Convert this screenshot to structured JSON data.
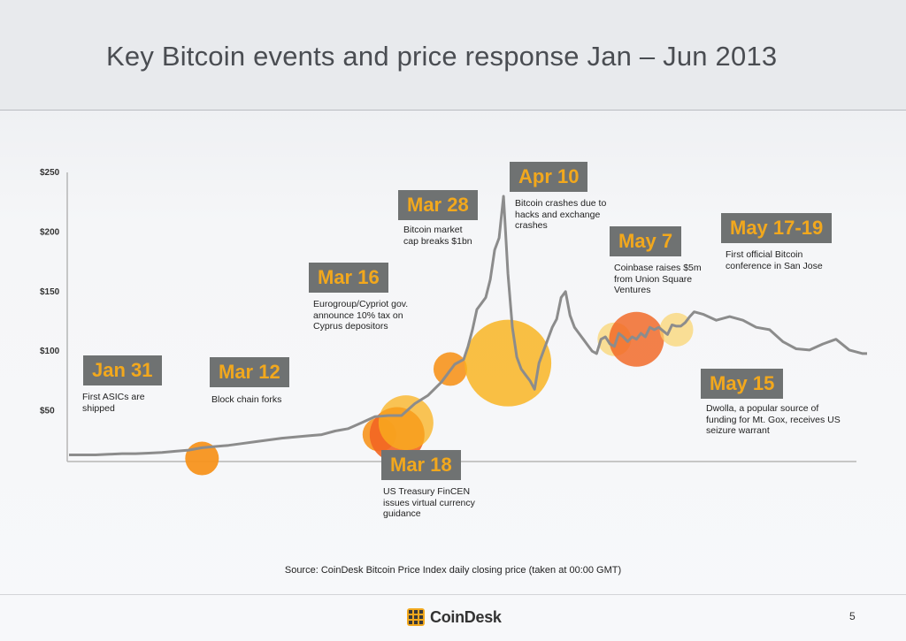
{
  "slide": {
    "title": "Key Bitcoin events and price response Jan – Jun 2013",
    "source": "Source: CoinDesk Bitcoin Price Index daily closing price (taken at 00:00 GMT)",
    "logo_text": "CoinDesk",
    "page_number": "5",
    "colors": {
      "event_box_bg": "#6f7272",
      "event_box_text": "#f2a81d",
      "line": "#8c8c8c"
    }
  },
  "chart_data": {
    "type": "line",
    "title": "",
    "xlabel": "",
    "ylabel": "",
    "ylim": [
      0,
      250
    ],
    "yticks": [
      50,
      100,
      150,
      200,
      250
    ],
    "ytick_labels": [
      "$50",
      "$100",
      "$150",
      "$200",
      "$250"
    ],
    "grid": false,
    "series": [
      {
        "x": [
          "2013-01-01",
          "2013-01-04",
          "2013-01-07",
          "2013-01-10",
          "2013-01-13",
          "2013-01-16",
          "2013-01-19",
          "2013-01-22",
          "2013-01-25",
          "2013-01-28",
          "2013-01-31",
          "2013-02-03",
          "2013-02-06",
          "2013-02-09",
          "2013-02-12",
          "2013-02-15",
          "2013-02-18",
          "2013-02-21",
          "2013-02-24",
          "2013-02-27",
          "2013-03-02",
          "2013-03-05",
          "2013-03-08",
          "2013-03-11",
          "2013-03-14",
          "2013-03-17",
          "2013-03-20",
          "2013-03-23",
          "2013-03-26",
          "2013-03-29",
          "2013-03-31",
          "2013-04-01",
          "2013-04-02",
          "2013-04-03",
          "2013-04-04",
          "2013-04-05",
          "2013-04-06",
          "2013-04-07",
          "2013-04-08",
          "2013-04-09",
          "2013-04-10",
          "2013-04-11",
          "2013-04-12",
          "2013-04-13",
          "2013-04-14",
          "2013-04-15",
          "2013-04-16",
          "2013-04-17",
          "2013-04-18",
          "2013-04-19",
          "2013-04-20",
          "2013-04-21",
          "2013-04-22",
          "2013-04-23",
          "2013-04-24",
          "2013-04-25",
          "2013-04-26",
          "2013-04-27",
          "2013-04-28",
          "2013-04-29",
          "2013-04-30",
          "2013-05-01",
          "2013-05-02",
          "2013-05-03",
          "2013-05-04",
          "2013-05-05",
          "2013-05-06",
          "2013-05-07",
          "2013-05-08",
          "2013-05-09",
          "2013-05-10",
          "2013-05-11",
          "2013-05-12",
          "2013-05-13",
          "2013-05-14",
          "2013-05-15",
          "2013-05-16",
          "2013-05-17",
          "2013-05-18",
          "2013-05-19",
          "2013-05-20",
          "2013-05-21",
          "2013-05-22",
          "2013-05-24",
          "2013-05-27",
          "2013-05-30",
          "2013-06-02",
          "2013-06-05",
          "2013-06-08",
          "2013-06-11",
          "2013-06-14",
          "2013-06-17",
          "2013-06-20",
          "2013-06-23",
          "2013-06-26",
          "2013-06-29",
          "2013-06-30"
        ],
        "y": [
          13,
          13,
          13,
          13.5,
          14,
          14,
          14.5,
          15,
          16,
          17,
          19,
          20,
          21,
          22.5,
          24,
          25.5,
          27,
          28,
          29,
          30,
          33,
          35,
          40,
          45,
          46,
          46,
          56,
          63,
          74,
          89,
          93,
          104,
          118,
          135,
          140,
          145,
          160,
          185,
          195,
          230,
          165,
          120,
          95,
          85,
          80,
          75,
          68,
          90,
          100,
          110,
          120,
          127,
          145,
          150,
          130,
          120,
          115,
          110,
          105,
          100,
          98,
          110,
          112,
          106,
          104,
          115,
          112,
          108,
          112,
          110,
          115,
          112,
          120,
          118,
          120,
          117,
          114,
          122,
          121,
          121,
          124,
          129,
          133,
          131,
          126,
          129,
          126,
          120,
          118,
          108,
          102,
          101,
          106,
          110,
          101,
          98,
          98
        ]
      }
    ],
    "events": [
      {
        "date": "2013-01-31",
        "label": "Jan 31",
        "text": "First ASICs are shipped"
      },
      {
        "date": "2013-03-12",
        "label": "Mar 12",
        "text": "Block chain forks"
      },
      {
        "date": "2013-03-16",
        "label": "Mar 16",
        "text": "Eurogroup/Cypriot gov. announce 10% tax on Cyprus depositors"
      },
      {
        "date": "2013-03-18",
        "label": "Mar 18",
        "text": "US Treasury FinCEN issues virtual currency guidance"
      },
      {
        "date": "2013-03-28",
        "label": "Mar 28",
        "text": "Bitcoin market cap breaks $1bn"
      },
      {
        "date": "2013-04-10",
        "label": "Apr 10",
        "text": "Bitcoin crashes due to hacks and exchange crashes"
      },
      {
        "date": "2013-05-07",
        "label": "May 7",
        "text": "Coinbase raises $5m from Union Square Ventures"
      },
      {
        "date": "2013-05-15",
        "label": "May 15",
        "text": "Dwolla, a popular source of funding for Mt. Gox, receives US seizure warrant"
      },
      {
        "date": "2013-05-17",
        "label": "May 17-19",
        "text": "First official Bitcoin conference in San Jose"
      }
    ],
    "bubbles": [
      {
        "date": "2013-01-31",
        "y": 10,
        "color": "#f7941d",
        "opacity": 0.95,
        "size": "small"
      },
      {
        "date": "2013-03-12",
        "y": 30,
        "color": "#f7941d",
        "opacity": 0.9,
        "size": "small"
      },
      {
        "date": "2013-03-16",
        "y": 30,
        "color": "#f26522",
        "opacity": 0.9,
        "size": "medium"
      },
      {
        "date": "2013-03-18",
        "y": 40,
        "color": "#f9b21c",
        "opacity": 0.75,
        "size": "medium"
      },
      {
        "date": "2013-03-28",
        "y": 85,
        "color": "#f7941d",
        "opacity": 0.9,
        "size": "small"
      },
      {
        "date": "2013-04-10",
        "y": 90,
        "color": "#f9b21c",
        "opacity": 0.82,
        "size": "large"
      },
      {
        "date": "2013-05-04",
        "y": 110,
        "color": "#fbd36b",
        "opacity": 0.7,
        "size": "small"
      },
      {
        "date": "2013-05-09",
        "y": 110,
        "color": "#f26522",
        "opacity": 0.82,
        "size": "medium"
      },
      {
        "date": "2013-05-18",
        "y": 118,
        "color": "#fbd36b",
        "opacity": 0.7,
        "size": "small"
      }
    ]
  }
}
